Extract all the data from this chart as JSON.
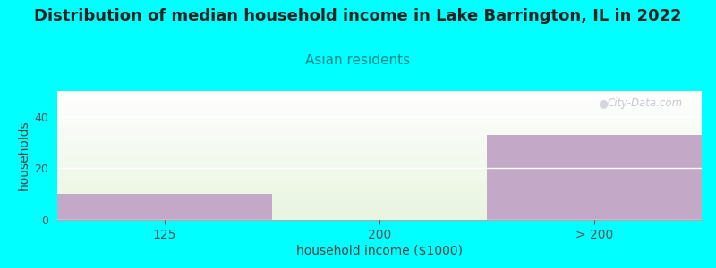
{
  "title": "Distribution of median household income in Lake Barrington, IL in 2022",
  "subtitle": "Asian residents",
  "categories": [
    "125",
    "200",
    "> 200"
  ],
  "values": [
    10,
    0,
    33
  ],
  "bar_color": "#C4A8C8",
  "bg_bar_color_top": "#FFFFFF",
  "bg_bar_color_bottom": "#E0F0D8",
  "background_color": "#00FFFF",
  "xlabel": "household income ($1000)",
  "ylabel": "households",
  "ylim": [
    0,
    50
  ],
  "yticks": [
    0,
    20,
    40
  ],
  "watermark": "City-Data.com",
  "title_fontsize": 13,
  "subtitle_fontsize": 11,
  "axis_label_fontsize": 10,
  "title_color": "#222222",
  "subtitle_color": "#008888"
}
